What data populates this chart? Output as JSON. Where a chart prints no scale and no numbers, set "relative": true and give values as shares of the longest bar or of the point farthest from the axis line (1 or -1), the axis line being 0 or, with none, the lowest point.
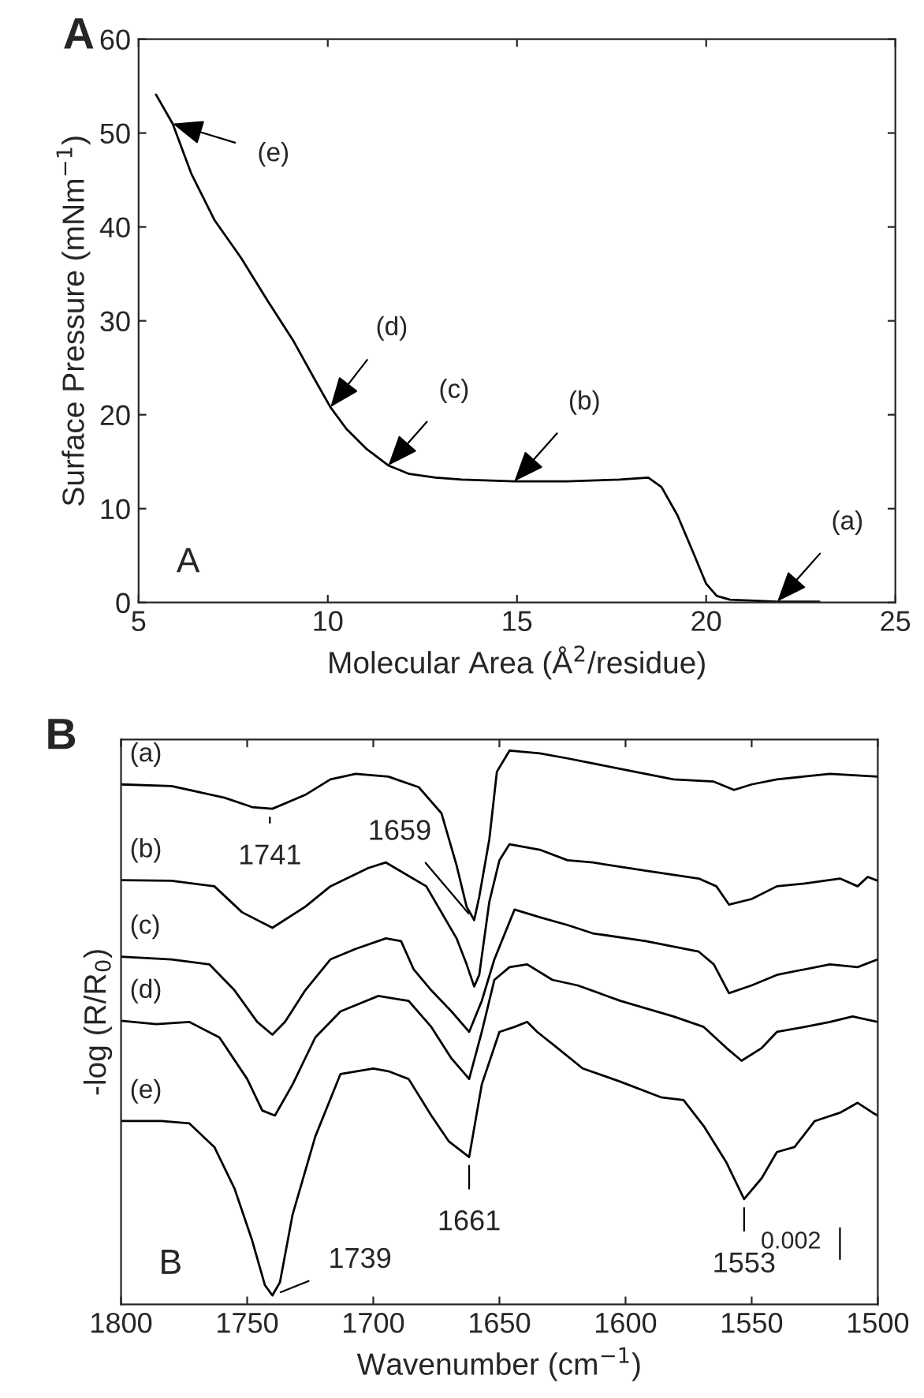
{
  "chart_data": [
    {
      "type": "line",
      "title": "A",
      "xlabel": "Molecular Area (Å$^{2}$/residue)",
      "ylabel": "Surface Pressure (mNm$^{−1}$)",
      "xlim": [
        5,
        25
      ],
      "xticks": [
        5,
        10,
        15,
        20,
        25
      ],
      "ylim": [
        0,
        60
      ],
      "yticks": [
        0,
        10,
        20,
        30,
        40,
        50,
        60
      ],
      "grid": false,
      "legend": false,
      "marker": "none",
      "line_style": "solid",
      "series": [
        {
          "color": "#000000",
          "x": [
            5.46,
            5.9,
            6.39,
            7.01,
            7.71,
            8.4,
            9.1,
            9.65,
            10.07,
            10.49,
            11.04,
            11.6,
            12.15,
            12.85,
            13.54,
            14.93,
            16.32,
            17.71,
            18.47,
            18.82,
            19.24,
            19.65,
            20.0,
            20.28,
            20.63,
            21.88,
            22.99
          ],
          "values": [
            54.1,
            51.0,
            45.7,
            40.7,
            36.7,
            32.2,
            27.8,
            23.8,
            20.8,
            18.5,
            16.3,
            14.6,
            13.7,
            13.3,
            13.1,
            12.9,
            12.9,
            13.1,
            13.3,
            12.3,
            9.3,
            5.4,
            2.0,
            0.7,
            0.3,
            0.1,
            0.1
          ]
        }
      ],
      "annotations": [
        {
          "text": "(e)",
          "x": 5.9,
          "y": 51.0
        },
        {
          "text": "(d)",
          "x": 10.07,
          "y": 20.8
        },
        {
          "text": "(c)",
          "x": 11.6,
          "y": 14.6
        },
        {
          "text": "(b)",
          "x": 14.93,
          "y": 12.9
        },
        {
          "text": "(a)",
          "x": 21.88,
          "y": 0.1
        },
        "A"
      ]
    },
    {
      "type": "line",
      "title": "B",
      "xlabel": "Wavenumber (cm$^{−1}$)",
      "ylabel": "-log (R/R$_{0}$)",
      "xlim": [
        1800,
        1500
      ],
      "xticks": [
        1800,
        1750,
        1700,
        1650,
        1600,
        1550,
        1500
      ],
      "relative": true,
      "tick_labels": "x",
      "grid": false,
      "legend": false,
      "marker": "none",
      "line_style": "solid",
      "series": [
        {
          "name": "(a)",
          "color": "#000000",
          "x": [
            1800,
            1780,
            1759,
            1748,
            1740,
            1727,
            1717,
            1707,
            1694,
            1682,
            1673,
            1667,
            1663,
            1660,
            1658,
            1654,
            1651,
            1646,
            1634,
            1623,
            1602,
            1581,
            1565,
            1557,
            1550,
            1540,
            1519,
            1500
          ],
          "values": [
            0.939,
            0.936,
            0.915,
            0.898,
            0.895,
            0.92,
            0.948,
            0.958,
            0.953,
            0.934,
            0.887,
            0.793,
            0.718,
            0.694,
            0.736,
            0.84,
            0.962,
            1.0,
            0.995,
            0.986,
            0.967,
            0.948,
            0.944,
            0.929,
            0.939,
            0.948,
            0.958,
            0.953
          ]
        },
        {
          "name": "(b)",
          "color": "#000000",
          "x": [
            1800,
            1780,
            1763,
            1752,
            1740,
            1727,
            1717,
            1702,
            1695,
            1688,
            1679,
            1673,
            1667,
            1663,
            1660,
            1658,
            1654,
            1650,
            1646,
            1634,
            1623,
            1613,
            1592,
            1571,
            1564,
            1559,
            1550,
            1540,
            1529,
            1515,
            1508,
            1504,
            1500
          ],
          "values": [
            0.766,
            0.765,
            0.755,
            0.708,
            0.68,
            0.718,
            0.755,
            0.788,
            0.798,
            0.779,
            0.755,
            0.708,
            0.661,
            0.614,
            0.574,
            0.595,
            0.727,
            0.802,
            0.831,
            0.821,
            0.802,
            0.798,
            0.783,
            0.769,
            0.755,
            0.722,
            0.732,
            0.755,
            0.76,
            0.769,
            0.755,
            0.772,
            0.765
          ]
        },
        {
          "name": "(c)",
          "color": "#000000",
          "x": [
            1800,
            1780,
            1765,
            1755,
            1746,
            1740,
            1735,
            1727,
            1717,
            1707,
            1695,
            1689,
            1684,
            1677,
            1669,
            1662,
            1657,
            1652,
            1644,
            1634,
            1623,
            1613,
            1592,
            1571,
            1565,
            1559,
            1550,
            1540,
            1519,
            1508,
            1500
          ],
          "values": [
            0.628,
            0.623,
            0.614,
            0.567,
            0.51,
            0.487,
            0.51,
            0.567,
            0.623,
            0.642,
            0.661,
            0.656,
            0.605,
            0.567,
            0.529,
            0.492,
            0.548,
            0.623,
            0.713,
            0.699,
            0.685,
            0.67,
            0.656,
            0.637,
            0.614,
            0.562,
            0.576,
            0.595,
            0.614,
            0.609,
            0.623
          ]
        },
        {
          "name": "(d)",
          "color": "#000000",
          "x": [
            1800,
            1786,
            1773,
            1761,
            1750,
            1744,
            1739,
            1732,
            1723,
            1713,
            1698,
            1686,
            1677,
            1669,
            1662,
            1657,
            1652,
            1646,
            1639,
            1629,
            1619,
            1602,
            1581,
            1569,
            1560,
            1554,
            1546,
            1540,
            1529,
            1519,
            1510,
            1500
          ],
          "values": [
            0.512,
            0.506,
            0.51,
            0.482,
            0.407,
            0.35,
            0.341,
            0.397,
            0.482,
            0.529,
            0.557,
            0.548,
            0.501,
            0.444,
            0.407,
            0.492,
            0.586,
            0.609,
            0.614,
            0.586,
            0.576,
            0.548,
            0.52,
            0.501,
            0.463,
            0.44,
            0.463,
            0.492,
            0.501,
            0.51,
            0.52,
            0.51
          ]
        },
        {
          "name": "(e)",
          "color": "#000000",
          "x": [
            1800,
            1784,
            1773,
            1763,
            1755,
            1748,
            1743,
            1740,
            1737,
            1732,
            1723,
            1713,
            1700,
            1694,
            1686,
            1677,
            1670,
            1662,
            1657,
            1650,
            1644,
            1639,
            1635,
            1627,
            1617,
            1602,
            1586,
            1577,
            1569,
            1560,
            1553,
            1546,
            1540,
            1533,
            1525,
            1515,
            1508,
            1502,
            1500
          ],
          "values": [
            0.331,
            0.331,
            0.327,
            0.284,
            0.209,
            0.115,
            0.035,
            0.016,
            0.04,
            0.162,
            0.303,
            0.416,
            0.426,
            0.421,
            0.407,
            0.341,
            0.294,
            0.266,
            0.397,
            0.492,
            0.501,
            0.51,
            0.492,
            0.463,
            0.426,
            0.402,
            0.374,
            0.369,
            0.322,
            0.256,
            0.19,
            0.228,
            0.275,
            0.284,
            0.331,
            0.346,
            0.364,
            0.346,
            0.341
          ]
        }
      ],
      "annotations": [
        {
          "text": "1741",
          "x": 1741,
          "y": 0.895
        },
        {
          "text": "1659",
          "x": 1660,
          "y": 0.694
        },
        {
          "text": "1661",
          "x": 1662,
          "y": 0.266
        },
        {
          "text": "1553",
          "x": 1553,
          "y": 0.19
        },
        {
          "text": "1739",
          "x": 1740,
          "y": 0.016
        },
        "0.002",
        "B"
      ]
    }
  ]
}
